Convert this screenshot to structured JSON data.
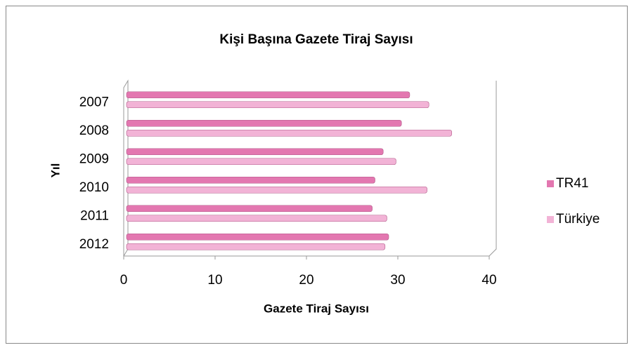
{
  "chart_data": {
    "type": "bar",
    "orientation": "horizontal",
    "title": "Kişi Başına Gazete Tiraj Sayısı",
    "xlabel": "Gazete Tiraj Sayısı",
    "ylabel": "Yıl",
    "categories": [
      "2007",
      "2008",
      "2009",
      "2010",
      "2011",
      "2012"
    ],
    "series": [
      {
        "name": "TR41",
        "color": "#e377b0",
        "values": [
          31.3,
          30.4,
          28.4,
          27.5,
          27.2,
          29.0
        ]
      },
      {
        "name": "Türkiye",
        "color": "#f2b3d6",
        "values": [
          33.4,
          35.9,
          29.8,
          33.2,
          28.8,
          28.6
        ]
      }
    ],
    "xlim": [
      0,
      40
    ],
    "xticks": [
      0,
      10,
      20,
      30,
      40
    ],
    "grid": false,
    "legend": "right"
  }
}
